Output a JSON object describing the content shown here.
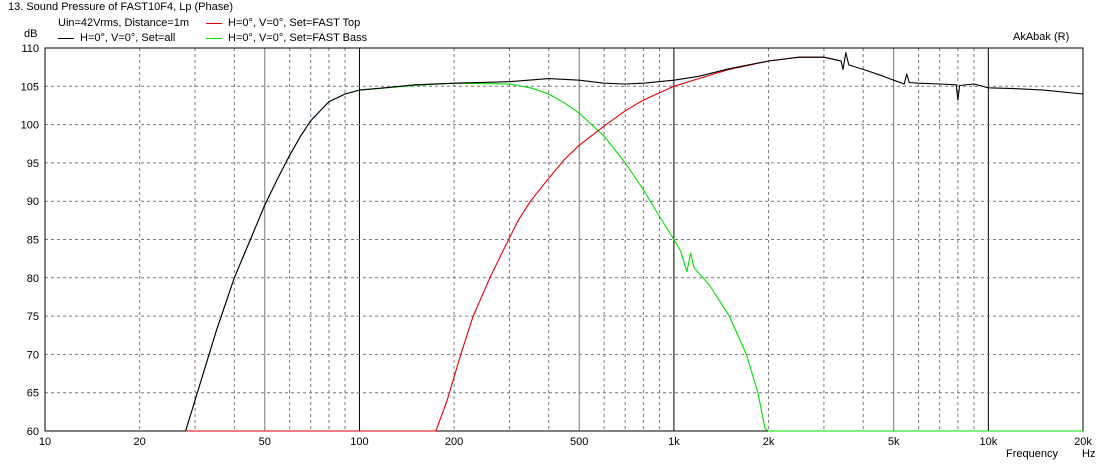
{
  "window": {
    "title": "13. Sound Pressure of FAST10F4, Lp (Phase)",
    "watermark": "AkAbak (R)"
  },
  "legend": {
    "info": "Uin=42Vrms, Distance=1m",
    "placement": "top-left"
  },
  "colors": {
    "background": "#ffffff",
    "grid_major": "#000000",
    "grid_minor": "#777777",
    "series_all": "#000000",
    "series_top": "#e00000",
    "series_bass": "#00dd00"
  },
  "chart_data": {
    "type": "line",
    "title": "13. Sound Pressure of FAST10F4, Lp (Phase)",
    "xlabel": "Frequency",
    "x_unit": "Hz",
    "ylabel": "",
    "y_unit": "dB",
    "xscale": "log",
    "xlim": [
      10,
      20000
    ],
    "ylim": [
      60,
      110
    ],
    "grid": true,
    "x_ticks": [
      {
        "value": 10,
        "label": "10"
      },
      {
        "value": 20,
        "label": "20"
      },
      {
        "value": 50,
        "label": "50"
      },
      {
        "value": 100,
        "label": "100"
      },
      {
        "value": 200,
        "label": "200"
      },
      {
        "value": 500,
        "label": "500"
      },
      {
        "value": 1000,
        "label": "1k"
      },
      {
        "value": 2000,
        "label": "2k"
      },
      {
        "value": 5000,
        "label": "5k"
      },
      {
        "value": 10000,
        "label": "10k"
      },
      {
        "value": 20000,
        "label": "20k"
      }
    ],
    "y_ticks": [
      {
        "value": 60,
        "label": "60"
      },
      {
        "value": 65,
        "label": "65"
      },
      {
        "value": 70,
        "label": "70"
      },
      {
        "value": 75,
        "label": "75"
      },
      {
        "value": 80,
        "label": "80"
      },
      {
        "value": 85,
        "label": "85"
      },
      {
        "value": 90,
        "label": "90"
      },
      {
        "value": 95,
        "label": "95"
      },
      {
        "value": 100,
        "label": "100"
      },
      {
        "value": 105,
        "label": "105"
      },
      {
        "value": 110,
        "label": "110"
      }
    ],
    "series": [
      {
        "name": "H=0°, V=0°, Set=all",
        "color": "#000000",
        "points": [
          [
            10,
            60
          ],
          [
            28,
            60
          ],
          [
            30,
            64
          ],
          [
            35,
            73
          ],
          [
            40,
            80
          ],
          [
            45,
            85
          ],
          [
            50,
            89.5
          ],
          [
            55,
            93
          ],
          [
            60,
            96
          ],
          [
            65,
            98.5
          ],
          [
            70,
            100.5
          ],
          [
            80,
            103
          ],
          [
            90,
            104
          ],
          [
            100,
            104.5
          ],
          [
            120,
            104.8
          ],
          [
            150,
            105.2
          ],
          [
            200,
            105.4
          ],
          [
            300,
            105.6
          ],
          [
            400,
            106
          ],
          [
            500,
            105.8
          ],
          [
            600,
            105.4
          ],
          [
            700,
            105.3
          ],
          [
            800,
            105.4
          ],
          [
            1000,
            105.8
          ],
          [
            1200,
            106.3
          ],
          [
            1500,
            107.3
          ],
          [
            2000,
            108.3
          ],
          [
            2500,
            108.8
          ],
          [
            3000,
            108.8
          ],
          [
            3400,
            108.3
          ],
          [
            3450,
            107.2
          ],
          [
            3520,
            109.4
          ],
          [
            3600,
            107.8
          ],
          [
            4000,
            107.2
          ],
          [
            4500,
            106.5
          ],
          [
            5000,
            105.8
          ],
          [
            5400,
            105.3
          ],
          [
            5500,
            106.6
          ],
          [
            5600,
            105.5
          ],
          [
            6000,
            105.4
          ],
          [
            7000,
            105.3
          ],
          [
            7900,
            105.2
          ],
          [
            8000,
            103.2
          ],
          [
            8100,
            105.1
          ],
          [
            9000,
            105.3
          ],
          [
            10000,
            104.8
          ],
          [
            12000,
            104.7
          ],
          [
            15000,
            104.5
          ],
          [
            20000,
            104
          ]
        ]
      },
      {
        "name": "H=0°, V=0°, Set=FAST Top",
        "color": "#e00000",
        "points": [
          [
            10,
            60
          ],
          [
            175,
            60
          ],
          [
            190,
            64
          ],
          [
            210,
            70
          ],
          [
            230,
            75
          ],
          [
            260,
            80
          ],
          [
            290,
            84
          ],
          [
            320,
            87.5
          ],
          [
            350,
            90
          ],
          [
            400,
            93
          ],
          [
            450,
            95.5
          ],
          [
            500,
            97.3
          ],
          [
            600,
            99.8
          ],
          [
            700,
            101.8
          ],
          [
            800,
            103.2
          ],
          [
            1000,
            105
          ],
          [
            1200,
            106
          ],
          [
            1500,
            107.2
          ],
          [
            2000,
            108.3
          ],
          [
            2500,
            108.8
          ],
          [
            3000,
            108.8
          ],
          [
            3400,
            108.3
          ]
        ]
      },
      {
        "name": "H=0°, V=0°, Set=FAST Bass",
        "color": "#00dd00",
        "points": [
          [
            10,
            60
          ],
          [
            28,
            60
          ],
          [
            30,
            64
          ],
          [
            35,
            73
          ],
          [
            40,
            80
          ],
          [
            45,
            85
          ],
          [
            50,
            89.5
          ],
          [
            55,
            93
          ],
          [
            60,
            96
          ],
          [
            65,
            98.5
          ],
          [
            70,
            100.5
          ],
          [
            80,
            103
          ],
          [
            90,
            104
          ],
          [
            100,
            104.5
          ],
          [
            150,
            105.1
          ],
          [
            200,
            105.4
          ],
          [
            300,
            105.3
          ],
          [
            350,
            104.8
          ],
          [
            400,
            104
          ],
          [
            450,
            102.8
          ],
          [
            500,
            101.5
          ],
          [
            600,
            98.5
          ],
          [
            700,
            95
          ],
          [
            800,
            91.5
          ],
          [
            900,
            88
          ],
          [
            1000,
            85
          ],
          [
            1050,
            83.5
          ],
          [
            1100,
            80.8
          ],
          [
            1130,
            83.2
          ],
          [
            1160,
            81.3
          ],
          [
            1300,
            79
          ],
          [
            1500,
            75
          ],
          [
            1700,
            70
          ],
          [
            1850,
            65
          ],
          [
            1950,
            60.3
          ],
          [
            2000,
            60
          ],
          [
            20000,
            60
          ]
        ]
      }
    ]
  }
}
